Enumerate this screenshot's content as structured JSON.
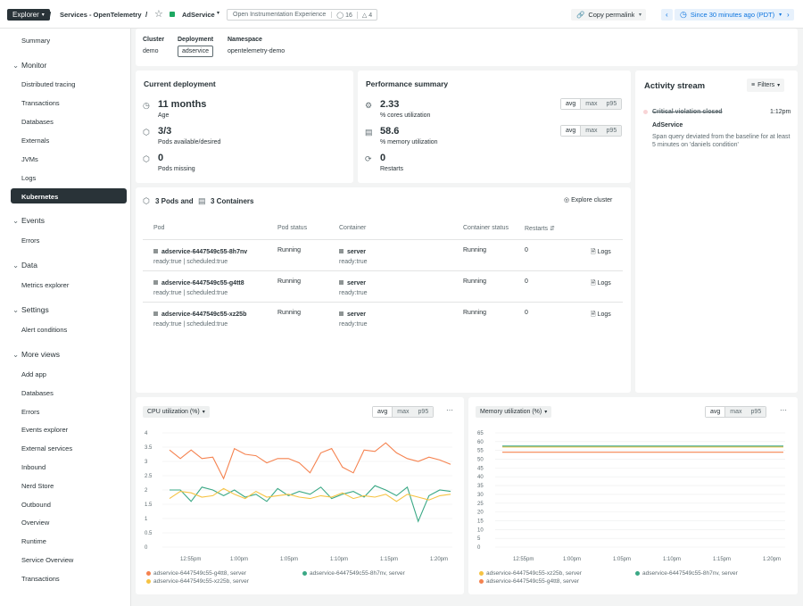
{
  "topbar": {
    "explorer_label": "Explorer",
    "sep1": "/",
    "services_label": "Services - OpenTelemetry",
    "sep2": "/",
    "entity_name": "AdService",
    "tag_label": "Open Instrumentation Experience",
    "tag_count": "16",
    "alert_count": "4",
    "copy_permalink": "Copy permalink",
    "time_range": "Since 30 minutes ago (PDT)"
  },
  "sidebar": {
    "summary": "Summary",
    "groups": {
      "monitor": "Monitor",
      "events": "Events",
      "data": "Data",
      "settings": "Settings",
      "more_views": "More views"
    },
    "monitor_items": [
      "Distributed tracing",
      "Transactions",
      "Databases",
      "Externals",
      "JVMs",
      "Logs",
      "Kubernetes"
    ],
    "events_items": [
      "Errors"
    ],
    "data_items": [
      "Metrics explorer"
    ],
    "settings_items": [
      "Alert conditions"
    ],
    "more_items": [
      "Add app",
      "Databases",
      "Errors",
      "Events explorer",
      "External services",
      "Inbound",
      "Nerd Store",
      "Outbound",
      "Overview",
      "Runtime",
      "Service Overview",
      "Transactions"
    ]
  },
  "info": {
    "cluster_label": "Cluster",
    "cluster_value": "demo",
    "deployment_label": "Deployment",
    "deployment_value": "adservice",
    "namespace_label": "Namespace",
    "namespace_value": "opentelemetry-demo"
  },
  "current_deployment": {
    "title": "Current deployment",
    "age_value": "11 months",
    "age_label": "Age",
    "pods_value": "3/3",
    "pods_label": "Pods available/desired",
    "missing_value": "0",
    "missing_label": "Pods missing"
  },
  "performance": {
    "title": "Performance summary",
    "cpu_value": "2.33",
    "cpu_label": "% cores utilization",
    "mem_value": "58.6",
    "mem_label": "% memory utilization",
    "restarts_value": "0",
    "restarts_label": "Restarts",
    "seg": [
      "avg",
      "max",
      "p95"
    ]
  },
  "activity": {
    "title": "Activity stream",
    "filters": "Filters",
    "event_title": "Critical violation closed",
    "event_time": "1:12pm",
    "event_entity": "AdService",
    "event_desc": "Span query deviated from the baseline for at least 5 minutes on 'daniels condition'"
  },
  "pods": {
    "pods_count": "3 Pods and",
    "containers_count": "3 Containers",
    "explore": "Explore cluster",
    "headers": [
      "Pod",
      "Pod status",
      "Container",
      "Container status",
      "Restarts"
    ],
    "rows": [
      {
        "pod": "adservice-6447549c55-8h7nv",
        "meta": "ready:true | scheduled:true",
        "status": "Running",
        "container": "server",
        "cmeta": "ready:true",
        "cstatus": "Running",
        "restarts": "0",
        "logs": "Logs"
      },
      {
        "pod": "adservice-6447549c55-g4tt8",
        "meta": "ready:true | scheduled:true",
        "status": "Running",
        "container": "server",
        "cmeta": "ready:true",
        "cstatus": "Running",
        "restarts": "0",
        "logs": "Logs"
      },
      {
        "pod": "adservice-6447549c55-xz25b",
        "meta": "ready:true | scheduled:true",
        "status": "Running",
        "container": "server",
        "cmeta": "ready:true",
        "cstatus": "Running",
        "restarts": "0",
        "logs": "Logs"
      }
    ]
  },
  "colors": {
    "orange": "#f5824f",
    "green": "#3aa885",
    "yellow": "#f6c343",
    "accent": "#0c74df"
  },
  "chart_data": [
    {
      "type": "line",
      "title": "CPU utilization (%)",
      "seg": [
        "avg",
        "max",
        "p95"
      ],
      "x_ticks": [
        "12:55pm",
        "1:00pm",
        "1:05pm",
        "1:10pm",
        "1:15pm",
        "1:20pm"
      ],
      "y_ticks": [
        "0",
        "0.5",
        "1",
        "1.5",
        "2",
        "2.5",
        "3",
        "3.5",
        "4"
      ],
      "ylim": [
        0,
        4
      ],
      "series": [
        {
          "name": "adservice-6447549c55-g4tt8, server",
          "color": "#f5824f",
          "values": [
            3.4,
            3.1,
            3.4,
            3.1,
            3.15,
            2.4,
            3.45,
            3.25,
            3.2,
            2.95,
            3.1,
            3.1,
            2.95,
            2.6,
            3.3,
            3.45,
            2.8,
            2.6,
            3.4,
            3.35,
            3.65,
            3.3,
            3.1,
            3.0,
            3.15,
            3.05,
            2.9
          ]
        },
        {
          "name": "adservice-6447549c55-8h7nv, server",
          "color": "#3aa885",
          "values": [
            2.0,
            2.0,
            1.6,
            2.1,
            2.0,
            1.8,
            2.0,
            1.75,
            1.85,
            1.6,
            2.05,
            1.8,
            1.95,
            1.85,
            2.1,
            1.7,
            1.85,
            1.95,
            1.75,
            2.15,
            2.0,
            1.8,
            2.1,
            0.9,
            1.8,
            2.0,
            1.95
          ]
        },
        {
          "name": "adservice-6447549c55-xz25b, server",
          "color": "#f6c343",
          "values": [
            1.7,
            1.95,
            1.9,
            1.75,
            1.8,
            2.05,
            1.85,
            1.7,
            1.95,
            1.75,
            1.8,
            1.85,
            1.75,
            1.7,
            1.8,
            1.75,
            1.9,
            1.7,
            1.8,
            1.75,
            1.85,
            1.6,
            1.85,
            1.75,
            1.65,
            1.8,
            1.85
          ]
        }
      ]
    },
    {
      "type": "line",
      "title": "Memory utilization (%)",
      "seg": [
        "avg",
        "max",
        "p95"
      ],
      "x_ticks": [
        "12:55pm",
        "1:00pm",
        "1:05pm",
        "1:10pm",
        "1:15pm",
        "1:20pm"
      ],
      "y_ticks": [
        "0",
        "5",
        "10",
        "15",
        "20",
        "25",
        "30",
        "35",
        "40",
        "45",
        "50",
        "55",
        "60",
        "65"
      ],
      "ylim": [
        0,
        65
      ],
      "series": [
        {
          "name": "adservice-6447549c55-xz25b, server",
          "color": "#f6c343",
          "values": [
            57,
            57,
            57,
            57,
            57,
            57,
            57,
            57,
            57,
            57,
            57,
            57,
            57,
            57,
            57,
            57,
            57,
            57,
            57,
            57,
            57,
            57,
            57,
            57,
            57,
            57,
            57
          ]
        },
        {
          "name": "adservice-6447549c55-8h7nv, server",
          "color": "#3aa885",
          "values": [
            57.5,
            57.5,
            57.5,
            57.5,
            57.5,
            57.5,
            57.5,
            57.5,
            57.5,
            57.5,
            57.5,
            57.5,
            57.5,
            57.5,
            57.5,
            57.5,
            57.5,
            57.5,
            57.5,
            57.5,
            57.5,
            57.5,
            57.5,
            57.5,
            57.5,
            57.5,
            57.5
          ]
        },
        {
          "name": "adservice-6447549c55-g4tt8, server",
          "color": "#f5824f",
          "values": [
            54,
            54,
            54,
            54,
            54,
            54,
            54,
            54,
            54,
            54,
            54,
            54,
            54,
            54,
            54,
            54,
            54,
            54,
            54,
            54,
            54,
            54,
            54,
            54,
            54,
            54,
            54
          ]
        }
      ]
    }
  ]
}
